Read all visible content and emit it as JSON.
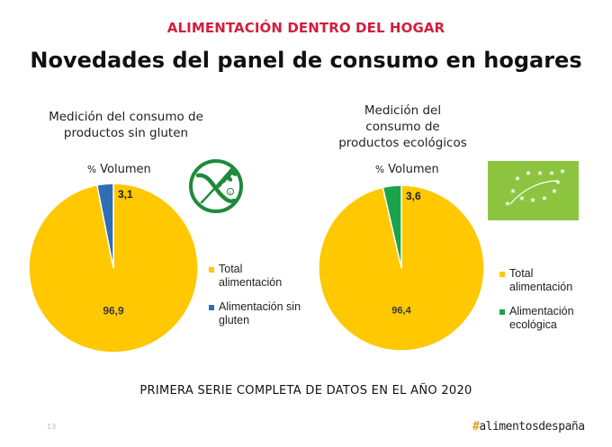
{
  "header": {
    "section_title": "ALIMENTACIÓN DENTRO DEL HOGAR",
    "page_title": "Novedades del panel de consumo en hogares"
  },
  "colors": {
    "accent_red": "#d21f3c",
    "total_yellow": "#ffc800",
    "gluten_blue": "#2f6db5",
    "eco_green": "#1aa34a",
    "eu_logo_green": "#8cc43f",
    "gluten_logo_green": "#1e8a3c"
  },
  "chart_data": [
    {
      "type": "pie",
      "title": "Medición del consumo de productos sin gluten",
      "unit_label_prefix": "%",
      "unit_label": "Volumen",
      "categories": [
        "Total alimentación",
        "Alimentación sin gluten"
      ],
      "values": [
        96.9,
        3.1
      ],
      "data_labels": [
        "96,9",
        "3,1"
      ],
      "colors": [
        "#ffc800",
        "#2f6db5"
      ],
      "legend": [
        {
          "label_line1": "Total",
          "label_line2": "alimentación"
        },
        {
          "label_line1": "Alimentación sin",
          "label_line2": "gluten"
        }
      ],
      "legend_position": "right",
      "logo": "gluten-free-crossed-grain-icon"
    },
    {
      "type": "pie",
      "title": "Medición del consumo de productos ecológicos",
      "title_lines": [
        "Medición del",
        "consumo de",
        "productos ecológicos"
      ],
      "unit_label_prefix": "%",
      "unit_label": "Volumen",
      "categories": [
        "Total alimentación",
        "Alimentación ecológica"
      ],
      "values": [
        96.4,
        3.6
      ],
      "data_labels": [
        "96,4",
        "3,6"
      ],
      "colors": [
        "#ffc800",
        "#1aa34a"
      ],
      "legend": [
        {
          "label_line1": "Total",
          "label_line2": "alimentación"
        },
        {
          "label_line1": "Alimentación",
          "label_line2": "ecológica"
        }
      ],
      "legend_position": "right",
      "logo": "eu-organic-leaf-icon"
    }
  ],
  "left_chart_title_lines": [
    "Medición del consumo de",
    "productos sin gluten"
  ],
  "footer": {
    "note": "PRIMERA SERIE COMPLETA DE DATOS EN EL AÑO 2020",
    "page_number": "13",
    "brand_hash": "#",
    "brand_text": "alimentosdespaña"
  }
}
